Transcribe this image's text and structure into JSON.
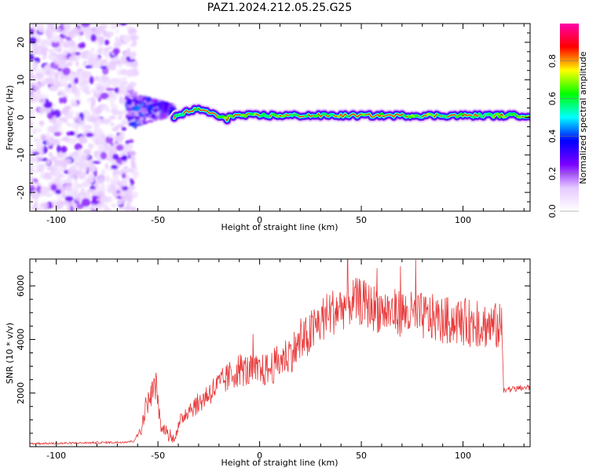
{
  "title": "PAZ1.2024.212.05.25.G25",
  "colors": {
    "snr_line": "#e8393a",
    "axis": "#000000"
  },
  "chart_data": [
    {
      "type": "heatmap",
      "description_source": "spectrogram of frequency vs height",
      "xlabel": "Height of straight line (km)",
      "ylabel": "Frequency (Hz)",
      "xlim": [
        -113,
        133
      ],
      "ylim": [
        -25,
        25
      ],
      "x_ticks": [
        -100,
        -50,
        0,
        50,
        100
      ],
      "y_ticks": [
        -20,
        -10,
        0,
        10,
        20
      ],
      "grid": false,
      "colorbar": {
        "label": "Normalized spectral amplitude",
        "range": [
          0,
          1
        ],
        "ticks": [
          0.0,
          0.2,
          0.4,
          0.6,
          0.8
        ],
        "colormap": [
          "#ffffff",
          "#e6c9ff",
          "#7a00ff",
          "#0000ff",
          "#00ffff",
          "#00ff00",
          "#ffff00",
          "#ff0000",
          "#ff00aa"
        ]
      },
      "features": [
        {
          "region": "noise",
          "x_range": [
            -113,
            -65
          ],
          "y_range": [
            -25,
            25
          ],
          "amplitude": 0.15
        },
        {
          "region": "transition",
          "x_range": [
            -65,
            -42
          ],
          "y_range": [
            -6,
            8
          ],
          "amplitude": 0.35
        },
        {
          "region": "carrier",
          "x_range": [
            -42,
            133
          ],
          "frequency": 0.5,
          "amplitude": 0.9
        }
      ]
    },
    {
      "type": "line",
      "xlabel": "Height of straight line (km)",
      "ylabel": "SNR (10 * v/v)",
      "xlim": [
        -113,
        133
      ],
      "ylim": [
        0,
        7000
      ],
      "x_ticks": [
        -100,
        -50,
        0,
        50,
        100
      ],
      "y_ticks": [
        2000,
        4000,
        6000
      ],
      "grid": false,
      "series": [
        {
          "x": [
            -113,
            -100,
            -80,
            -70,
            -62,
            -58,
            -56,
            -54,
            -52,
            -51,
            -50,
            -49,
            -48,
            -46,
            -45,
            -44,
            -43,
            -42,
            -40,
            -38,
            -35,
            -30,
            -25,
            -20,
            -15,
            -10,
            -5,
            0,
            5,
            10,
            15,
            20,
            25,
            30,
            35,
            40,
            45,
            50,
            55,
            60,
            65,
            70,
            75,
            80,
            85,
            90,
            95,
            100,
            105,
            110,
            115,
            119,
            120,
            121,
            122,
            125,
            130,
            133
          ],
          "y": [
            120,
            120,
            150,
            160,
            200,
            700,
            1500,
            1800,
            2200,
            2300,
            1800,
            900,
            600,
            700,
            400,
            300,
            300,
            350,
            700,
            1100,
            1400,
            1600,
            2000,
            2300,
            2600,
            2900,
            2800,
            2800,
            2900,
            3200,
            3500,
            3800,
            4200,
            4700,
            5000,
            5200,
            5400,
            5400,
            5200,
            5100,
            5000,
            5000,
            4900,
            4850,
            4800,
            4700,
            4700,
            4650,
            4600,
            4550,
            4500,
            4450,
            2200,
            2150,
            2150,
            2150,
            2200,
            2200
          ]
        }
      ]
    }
  ]
}
